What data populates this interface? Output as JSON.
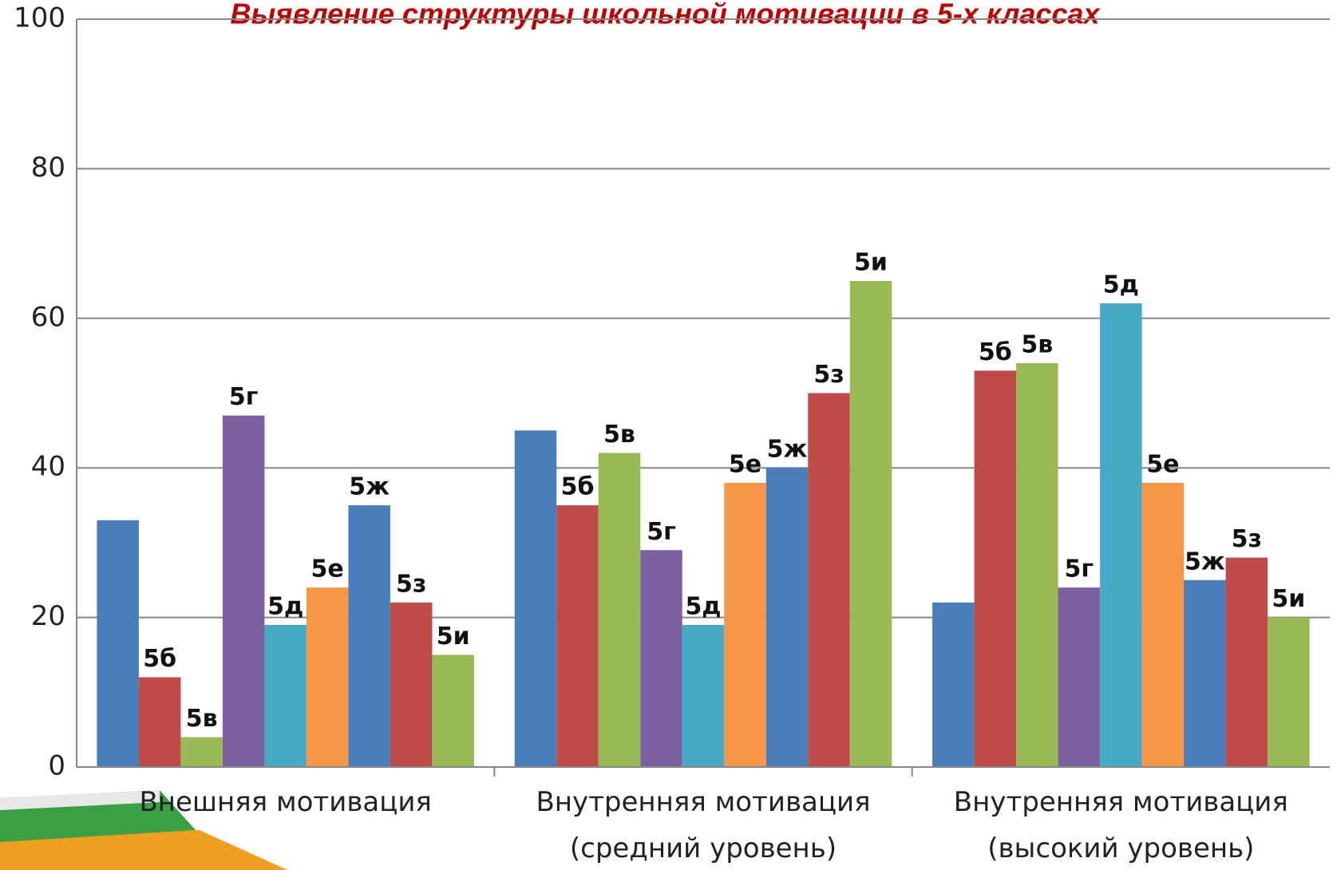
{
  "chart_data": {
    "type": "bar",
    "title": "Выявление структуры школьной мотивации в 5-х классах",
    "categories": [
      "Внешняя мотивация",
      "Внутренняя мотивация\n(средний уровень)",
      "Внутренняя мотивация\n(высокий уровень)"
    ],
    "series": [
      {
        "color": "#4a7ebb",
        "values": [
          33,
          45,
          22
        ]
      },
      {
        "name": "5б",
        "color": "#be4b48",
        "values": [
          12,
          35,
          53
        ]
      },
      {
        "name": "5в",
        "color": "#98b954",
        "values": [
          4,
          42,
          54
        ]
      },
      {
        "name": "5г",
        "color": "#7d60a0",
        "values": [
          47,
          29,
          24
        ]
      },
      {
        "name": "5д",
        "color": "#46aac5",
        "values": [
          19,
          19,
          62
        ]
      },
      {
        "name": "5е",
        "color": "#f79646",
        "values": [
          24,
          38,
          38
        ]
      },
      {
        "name": "5ж",
        "color": "#4a7ebb",
        "values": [
          35,
          40,
          25
        ]
      },
      {
        "name": "5з",
        "color": "#be4b48",
        "values": [
          22,
          50,
          28
        ]
      },
      {
        "name": "5и",
        "color": "#98b954",
        "values": [
          15,
          65,
          20
        ]
      }
    ],
    "ylim": [
      0,
      100
    ],
    "yticks": [
      0,
      20,
      40,
      60,
      80,
      100
    ],
    "grid": true
  }
}
